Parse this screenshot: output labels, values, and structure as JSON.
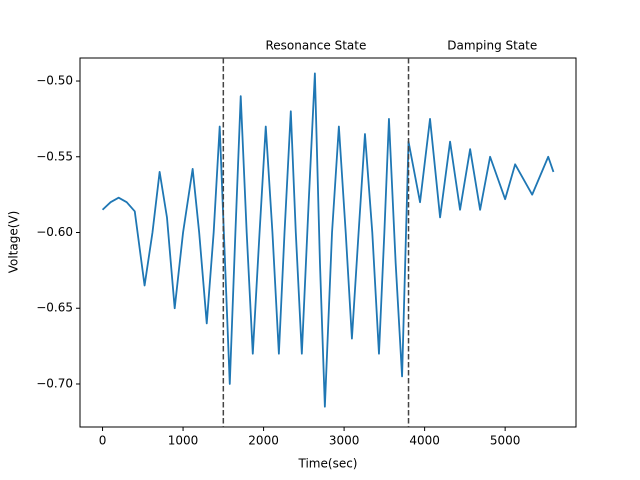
{
  "chart_data": {
    "type": "line",
    "xlabel": "Time(sec)",
    "ylabel": "Voltage(V)",
    "annotations": [
      "Resonance State",
      "Damping State"
    ],
    "vlines": [
      1500,
      3800
    ],
    "color": "#1f77b4",
    "x": [
      0,
      100,
      200,
      300,
      400,
      522,
      620,
      709,
      800,
      896,
      1000,
      1119,
      1200,
      1294,
      1380,
      1455,
      1580,
      1650,
      1716,
      1790,
      1866,
      1950,
      2027,
      2110,
      2190,
      2260,
      2338,
      2400,
      2475,
      2560,
      2637,
      2700,
      2761,
      2850,
      2935,
      3020,
      3097,
      3180,
      3259,
      3350,
      3433,
      3500,
      3557,
      3640,
      3720,
      3800,
      3943,
      4067,
      4192,
      4316,
      4440,
      4565,
      4689,
      4813,
      5000,
      5124,
      5336,
      5535,
      5600
    ],
    "values": [
      -0.585,
      -0.58,
      -0.577,
      -0.58,
      -0.586,
      -0.635,
      -0.6,
      -0.56,
      -0.59,
      -0.65,
      -0.6,
      -0.558,
      -0.6,
      -0.66,
      -0.6,
      -0.53,
      -0.7,
      -0.6,
      -0.51,
      -0.6,
      -0.68,
      -0.6,
      -0.53,
      -0.6,
      -0.68,
      -0.6,
      -0.52,
      -0.6,
      -0.68,
      -0.58,
      -0.495,
      -0.62,
      -0.715,
      -0.6,
      -0.53,
      -0.6,
      -0.67,
      -0.6,
      -0.535,
      -0.6,
      -0.68,
      -0.6,
      -0.525,
      -0.62,
      -0.695,
      -0.54,
      -0.58,
      -0.525,
      -0.59,
      -0.54,
      -0.585,
      -0.545,
      -0.585,
      -0.55,
      -0.578,
      -0.555,
      -0.575,
      -0.55,
      -0.56
    ],
    "xlim": [
      -280,
      5880
    ],
    "xticks": [
      0,
      1000,
      2000,
      3000,
      4000,
      5000
    ],
    "ylim": [
      -0.7284,
      -0.4848
    ],
    "yticks": [
      {
        "value": -0.7,
        "label": "−0.70"
      },
      {
        "value": -0.65,
        "label": "−0.65"
      },
      {
        "value": -0.6,
        "label": "−0.60"
      },
      {
        "value": -0.55,
        "label": "−0.55"
      },
      {
        "value": -0.5,
        "label": "−0.50"
      }
    ]
  }
}
